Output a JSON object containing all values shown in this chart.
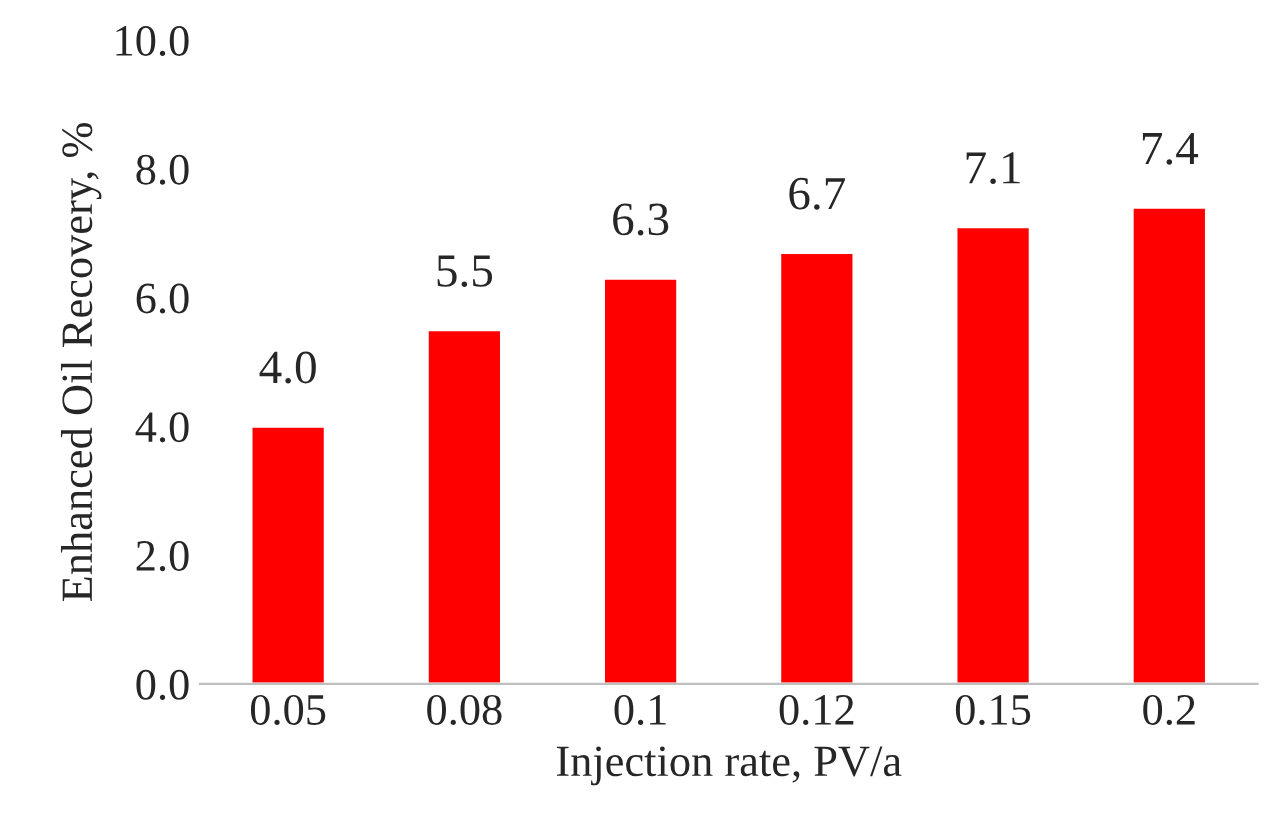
{
  "chart_data": {
    "type": "bar",
    "xlabel": "Injection rate, PV/a",
    "ylabel": "Enhanced Oil Recovery, %",
    "categories": [
      "0.05",
      "0.08",
      "0.1",
      "0.12",
      "0.15",
      "0.2"
    ],
    "values": [
      4.0,
      5.5,
      6.3,
      6.7,
      7.1,
      7.4
    ],
    "value_labels": [
      "4.0",
      "5.5",
      "6.3",
      "6.7",
      "7.1",
      "7.4"
    ],
    "color": "#ff0000",
    "ylim": [
      0,
      10
    ],
    "yticks": [
      {
        "value": 0,
        "label": "0.0"
      },
      {
        "value": 2,
        "label": "2.0"
      },
      {
        "value": 4,
        "label": "4.0"
      },
      {
        "value": 6,
        "label": "6.0"
      },
      {
        "value": 8,
        "label": "8.0"
      },
      {
        "value": 10,
        "label": "10.0"
      }
    ],
    "grid": false
  }
}
